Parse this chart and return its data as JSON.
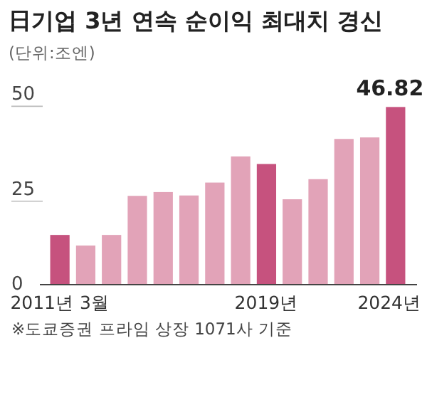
{
  "chart_data": {
    "type": "bar",
    "title": "日기업 3년 연속 순이익 최대치 경신",
    "subtitle": "(단위:조엔)",
    "categories": [
      "2011년 3월",
      null,
      null,
      null,
      null,
      null,
      null,
      null,
      "2019년",
      null,
      null,
      null,
      null,
      "2024년"
    ],
    "values": [
      13.1,
      10.3,
      13.1,
      23.4,
      24.4,
      23.5,
      26.9,
      33.8,
      31.8,
      22.5,
      27.8,
      38.4,
      38.8,
      46.82
    ],
    "colors": [
      "#c6527e",
      "#e2a3b8",
      "#e2a3b8",
      "#e2a3b8",
      "#e2a3b8",
      "#e2a3b8",
      "#e2a3b8",
      "#e2a3b8",
      "#c6527e",
      "#e2a3b8",
      "#e2a3b8",
      "#e2a3b8",
      "#e2a3b8",
      "#c6527e"
    ],
    "value_labels": [
      null,
      null,
      null,
      null,
      null,
      null,
      null,
      null,
      null,
      null,
      null,
      null,
      null,
      "46.82"
    ],
    "ylim": [
      0,
      50
    ],
    "yticks": [
      0,
      25,
      50
    ],
    "annotations": [
      "※도쿄증권 프라임 상장 1071사 기준"
    ]
  }
}
